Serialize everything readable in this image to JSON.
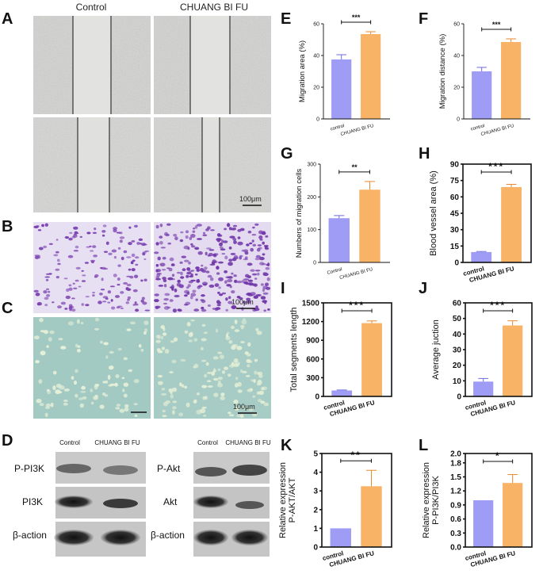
{
  "panel_labels": [
    "A",
    "B",
    "C",
    "D",
    "E",
    "F",
    "G",
    "H",
    "I",
    "J",
    "K",
    "L"
  ],
  "image_panels": {
    "column_headers": [
      "Control",
      "CHUANG BI FU"
    ],
    "scale_bar": "100μm"
  },
  "western_blot": {
    "left": {
      "lanes": [
        "Control",
        "CHUANG BI FU"
      ],
      "rows": [
        "P-PI3K",
        "PI3K",
        "β-action"
      ]
    },
    "right": {
      "lanes": [
        "Control",
        "CHUANG BI FU"
      ],
      "rows": [
        "P-Akt",
        "Akt",
        "β-action"
      ]
    }
  },
  "chart_data": [
    {
      "id": "E",
      "type": "bar",
      "categories": [
        "control",
        "CHUANG BI FU"
      ],
      "values": [
        37.5,
        53.5
      ],
      "errors": [
        3,
        1.5
      ],
      "ylabel": "Migration area (%)",
      "ylim": [
        0,
        60
      ],
      "yticks": [
        0,
        20,
        40,
        60
      ],
      "significance": "***"
    },
    {
      "id": "F",
      "type": "bar",
      "categories": [
        "control",
        "CHUANG BI FU"
      ],
      "values": [
        30,
        48.5
      ],
      "errors": [
        2.5,
        2
      ],
      "ylabel": "Migration distance (%)",
      "ylim": [
        0,
        60
      ],
      "yticks": [
        0,
        20,
        40,
        60
      ],
      "significance": "***"
    },
    {
      "id": "G",
      "type": "bar",
      "categories": [
        "Control",
        "CHUANG BI FU"
      ],
      "values": [
        135,
        222
      ],
      "errors": [
        8,
        25
      ],
      "ylabel": "Numbers of migration cells",
      "ylim": [
        0,
        300
      ],
      "yticks": [
        0,
        100,
        200,
        300
      ],
      "significance": "**"
    },
    {
      "id": "H",
      "type": "bar",
      "categories": [
        "control",
        "CHUANG BI FU"
      ],
      "values": [
        9.5,
        69
      ],
      "errors": [
        0.5,
        2.5
      ],
      "ylabel": "Blood vessel area (%)",
      "ylim": [
        0,
        90
      ],
      "yticks": [
        0,
        15,
        30,
        45,
        60,
        75,
        90
      ],
      "significance": "***"
    },
    {
      "id": "I",
      "type": "bar",
      "categories": [
        "control",
        "CHUANG BI FU"
      ],
      "values": [
        95,
        1175
      ],
      "errors": [
        8,
        35
      ],
      "ylabel": "Total segments length",
      "ylim": [
        0,
        1500
      ],
      "yticks": [
        0,
        300,
        600,
        900,
        1200,
        1500
      ],
      "significance": "***"
    },
    {
      "id": "J",
      "type": "bar",
      "categories": [
        "control",
        "CHUANG BI FU"
      ],
      "values": [
        9.5,
        45.5
      ],
      "errors": [
        2,
        3
      ],
      "ylabel": "Average juction",
      "ylim": [
        0,
        60
      ],
      "yticks": [
        0,
        10,
        20,
        30,
        40,
        50,
        60
      ],
      "significance": "***"
    },
    {
      "id": "K",
      "type": "bar",
      "categories": [
        "control",
        "CHUANG BI FU"
      ],
      "values": [
        1,
        3.25
      ],
      "errors": [
        0,
        0.85
      ],
      "ylabel": "Relative expression P-AKT/AKT",
      "ylim": [
        0,
        5
      ],
      "yticks": [
        0,
        1,
        2,
        3,
        4,
        5
      ],
      "significance": "**"
    },
    {
      "id": "L",
      "type": "bar",
      "categories": [
        "control",
        "CHUANG BI FU"
      ],
      "values": [
        1,
        1.37
      ],
      "errors": [
        0,
        0.18
      ],
      "ylabel": "Relative expression P-PI3K/PI3K",
      "ylim": [
        0,
        2.0
      ],
      "yticks": [
        0,
        0.3,
        0.6,
        0.9,
        1.2,
        1.5,
        1.8,
        2.0
      ],
      "ytick_labels": [
        "0.0",
        "0.3",
        "0.6",
        "0.9",
        "1.2",
        "1.5",
        "1.8",
        "2.0"
      ],
      "significance": "*"
    }
  ],
  "colors": {
    "control_bar": "#9E9CF5",
    "treatment_bar": "#F8B366",
    "control_error": "#6C6BE0",
    "treatment_error": "#E88A2C"
  }
}
